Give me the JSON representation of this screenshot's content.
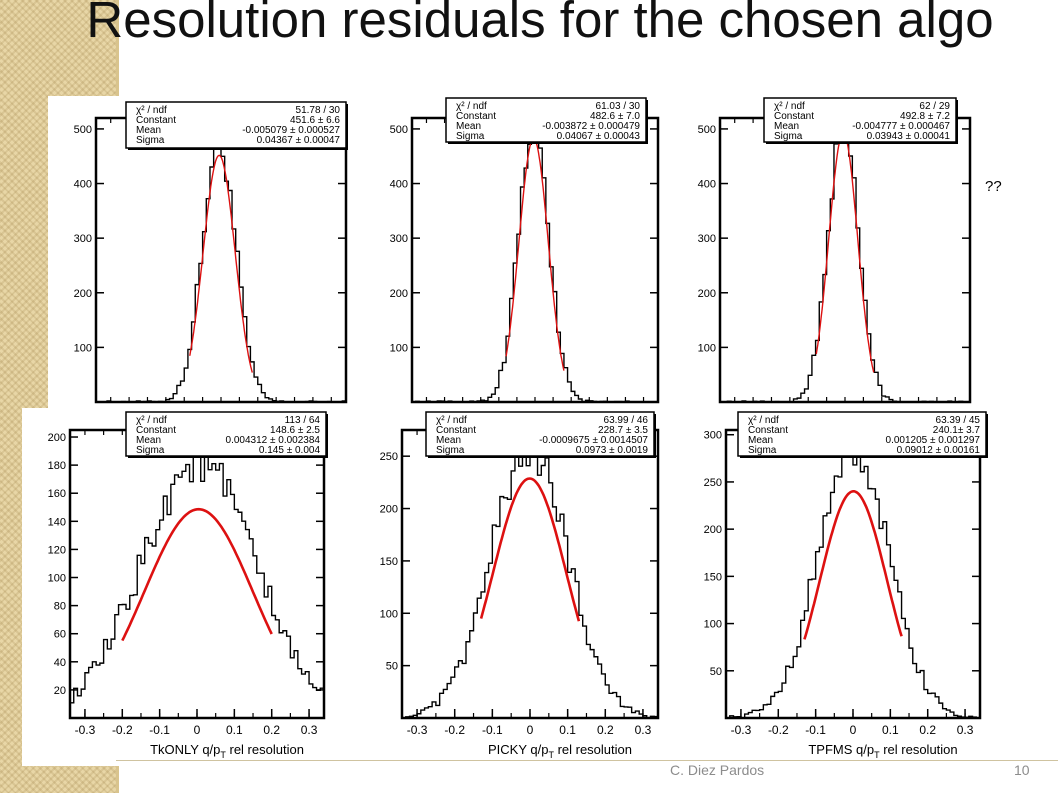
{
  "slide": {
    "title": "Resolution residuals for the chosen algo",
    "note": "??",
    "author": "C. Diez Pardos",
    "page": "10"
  },
  "colors": {
    "histogram": "#000000",
    "fit": "#dd1111",
    "frame": "#000000"
  },
  "chart_data": [
    {
      "type": "histogram",
      "xlabel": "",
      "xlim": [
        -0.34,
        0.34
      ],
      "ylim": [
        0,
        520
      ],
      "yticks": [
        100,
        200,
        300,
        400,
        500
      ],
      "stats": [
        [
          "χ² / ndf",
          "51.78 / 30"
        ],
        [
          "Constant",
          "451.6 ± 6.6"
        ],
        [
          "Mean",
          "-0.005079 ± 0.000527"
        ],
        [
          "Sigma",
          "0.04367 ± 0.00047"
        ]
      ],
      "fit": {
        "constant": 451.6,
        "mean": -0.005079,
        "sigma": 0.04367,
        "range": [
          -0.085,
          0.085
        ]
      },
      "peak": 470
    },
    {
      "type": "histogram",
      "xlabel": "",
      "xlim": [
        -0.34,
        0.34
      ],
      "ylim": [
        0,
        520
      ],
      "yticks": [
        100,
        200,
        300,
        400,
        500
      ],
      "stats": [
        [
          "χ² / ndf",
          "61.03 / 30"
        ],
        [
          "Constant",
          "482.6 ± 7.0"
        ],
        [
          "Mean",
          "-0.003872 ± 0.000479"
        ],
        [
          "Sigma",
          "0.04067 ± 0.00043"
        ]
      ],
      "fit": {
        "constant": 482.6,
        "mean": -0.003872,
        "sigma": 0.04067,
        "range": [
          -0.08,
          0.08
        ]
      },
      "peak": 500
    },
    {
      "type": "histogram",
      "xlabel": "",
      "xlim": [
        -0.34,
        0.34
      ],
      "ylim": [
        0,
        520
      ],
      "yticks": [
        100,
        200,
        300,
        400,
        500
      ],
      "stats": [
        [
          "χ² / ndf",
          "62 / 29"
        ],
        [
          "Constant",
          "492.8 ± 7.2"
        ],
        [
          "Mean",
          "-0.004777 ± 0.000467"
        ],
        [
          "Sigma",
          "0.03943 ± 0.00041"
        ]
      ],
      "fit": {
        "constant": 492.8,
        "mean": -0.004777,
        "sigma": 0.03943,
        "range": [
          -0.078,
          0.078
        ]
      },
      "peak": 510
    },
    {
      "type": "histogram",
      "xlabel": "TkONLY q/p_T rel resolution",
      "xlim": [
        -0.34,
        0.34
      ],
      "ylim": [
        0,
        205
      ],
      "xticks": [
        -0.3,
        -0.2,
        -0.1,
        0,
        0.1,
        0.2,
        0.3
      ],
      "yticks": [
        20,
        40,
        60,
        80,
        100,
        120,
        140,
        160,
        180,
        200
      ],
      "stats": [
        [
          "χ² / ndf",
          "113 / 64"
        ],
        [
          "Constant",
          "148.6 ± 2.5"
        ],
        [
          "Mean",
          "0.004312 ± 0.002384"
        ],
        [
          "Sigma",
          "0.145 ± 0.004"
        ]
      ],
      "fit": {
        "constant": 148.6,
        "mean": 0.004312,
        "sigma": 0.145,
        "range": [
          -0.2,
          0.2
        ]
      },
      "peak": 182
    },
    {
      "type": "histogram",
      "xlabel": "PICKY q/p_T rel resolution",
      "xlim": [
        -0.34,
        0.34
      ],
      "ylim": [
        0,
        275
      ],
      "xticks": [
        -0.3,
        -0.2,
        -0.1,
        0,
        0.1,
        0.2,
        0.3
      ],
      "yticks": [
        50,
        100,
        150,
        200,
        250
      ],
      "stats": [
        [
          "χ² / ndf",
          "63.99 / 46"
        ],
        [
          "Constant",
          "228.7 ± 3.5"
        ],
        [
          "Mean",
          "-0.0009675 ± 0.0014507"
        ],
        [
          "Sigma",
          "0.0973 ± 0.0019"
        ]
      ],
      "fit": {
        "constant": 228.7,
        "mean": -0.0009675,
        "sigma": 0.0973,
        "range": [
          -0.13,
          0.13
        ]
      },
      "peak": 258
    },
    {
      "type": "histogram",
      "xlabel": "TPFMS q/p_T rel resolution",
      "xlim": [
        -0.34,
        0.34
      ],
      "ylim": [
        0,
        305
      ],
      "xticks": [
        -0.3,
        -0.2,
        -0.1,
        0,
        0.1,
        0.2,
        0.3
      ],
      "yticks": [
        50,
        100,
        150,
        200,
        250,
        300
      ],
      "stats": [
        [
          "χ² / ndf",
          "63.39 / 45"
        ],
        [
          "Constant",
          "240.1± 3.7"
        ],
        [
          "Mean",
          "0.001205 ± 0.001297"
        ],
        [
          "Sigma",
          "0.09012 ± 0.00161"
        ]
      ],
      "fit": {
        "constant": 240.1,
        "mean": 0.001205,
        "sigma": 0.09012,
        "range": [
          -0.13,
          0.13
        ]
      },
      "peak": 285
    }
  ]
}
